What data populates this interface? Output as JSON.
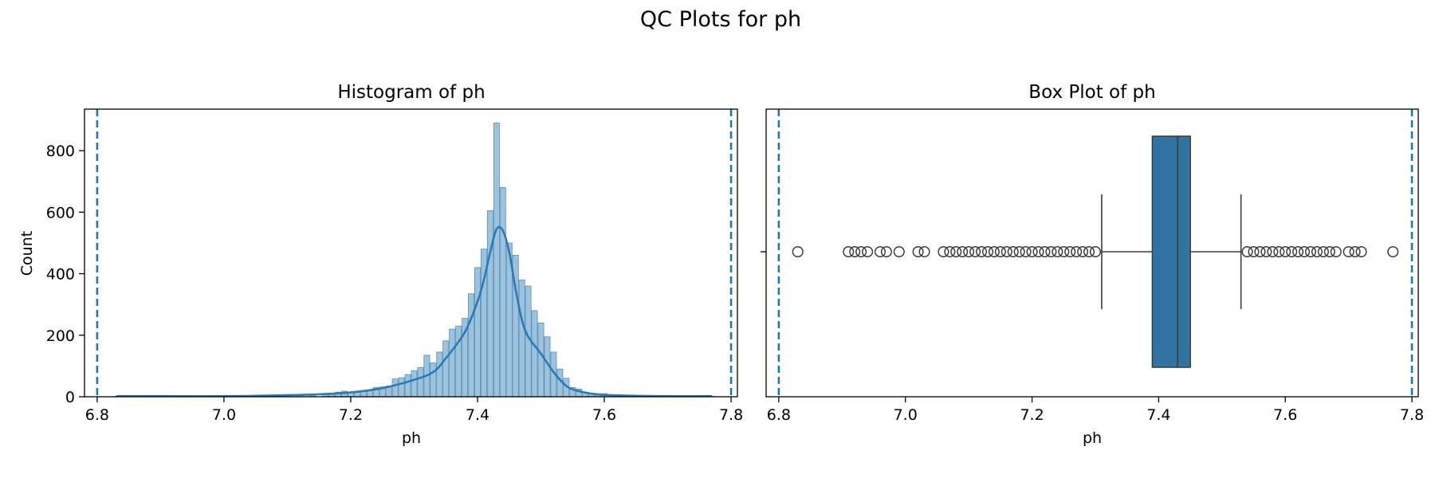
{
  "figure": {
    "title": "QC Plots for ph"
  },
  "colors": {
    "bar_fill": "#9cc3de",
    "bar_edge": "#5e8fb3",
    "kde": "#2a7ab8",
    "ref_line": "#1f77b4",
    "box_fill": "#3274a1",
    "box_edge": "#3d3d3d",
    "axis": "#000000"
  },
  "chart_data": [
    {
      "type": "histogram",
      "title": "Histogram of ph",
      "xlabel": "ph",
      "ylabel": "Count",
      "xlim": [
        6.78,
        7.81
      ],
      "ylim": [
        0,
        935
      ],
      "xticks": [
        "6.8",
        "7.0",
        "7.2",
        "7.4",
        "7.6",
        "7.8"
      ],
      "yticks": [
        "0",
        "200",
        "400",
        "600",
        "800"
      ],
      "reference_lines": [
        6.8,
        7.8
      ],
      "reference_style": "dashed",
      "bins": [
        {
          "x": 6.83,
          "count": 1
        },
        {
          "x": 6.91,
          "count": 1
        },
        {
          "x": 6.96,
          "count": 1
        },
        {
          "x": 7.02,
          "count": 2
        },
        {
          "x": 7.06,
          "count": 3
        },
        {
          "x": 7.08,
          "count": 4
        },
        {
          "x": 7.1,
          "count": 3
        },
        {
          "x": 7.12,
          "count": 5
        },
        {
          "x": 7.14,
          "count": 5
        },
        {
          "x": 7.16,
          "count": 8
        },
        {
          "x": 7.17,
          "count": 8
        },
        {
          "x": 7.18,
          "count": 15
        },
        {
          "x": 7.19,
          "count": 18
        },
        {
          "x": 7.2,
          "count": 12
        },
        {
          "x": 7.21,
          "count": 17
        },
        {
          "x": 7.22,
          "count": 20
        },
        {
          "x": 7.23,
          "count": 22
        },
        {
          "x": 7.24,
          "count": 30
        },
        {
          "x": 7.25,
          "count": 32
        },
        {
          "x": 7.26,
          "count": 35
        },
        {
          "x": 7.27,
          "count": 58
        },
        {
          "x": 7.28,
          "count": 62
        },
        {
          "x": 7.29,
          "count": 72
        },
        {
          "x": 7.3,
          "count": 85
        },
        {
          "x": 7.31,
          "count": 95
        },
        {
          "x": 7.32,
          "count": 135
        },
        {
          "x": 7.33,
          "count": 110
        },
        {
          "x": 7.34,
          "count": 145
        },
        {
          "x": 7.35,
          "count": 182
        },
        {
          "x": 7.36,
          "count": 220
        },
        {
          "x": 7.37,
          "count": 230
        },
        {
          "x": 7.38,
          "count": 255
        },
        {
          "x": 7.39,
          "count": 335
        },
        {
          "x": 7.4,
          "count": 420
        },
        {
          "x": 7.41,
          "count": 480
        },
        {
          "x": 7.42,
          "count": 605
        },
        {
          "x": 7.43,
          "count": 890
        },
        {
          "x": 7.44,
          "count": 680
        },
        {
          "x": 7.45,
          "count": 500
        },
        {
          "x": 7.46,
          "count": 460
        },
        {
          "x": 7.47,
          "count": 380
        },
        {
          "x": 7.48,
          "count": 360
        },
        {
          "x": 7.49,
          "count": 280
        },
        {
          "x": 7.5,
          "count": 240
        },
        {
          "x": 7.51,
          "count": 195
        },
        {
          "x": 7.52,
          "count": 145
        },
        {
          "x": 7.53,
          "count": 90
        },
        {
          "x": 7.54,
          "count": 60
        },
        {
          "x": 7.55,
          "count": 30
        },
        {
          "x": 7.56,
          "count": 25
        },
        {
          "x": 7.57,
          "count": 15
        },
        {
          "x": 7.58,
          "count": 12
        },
        {
          "x": 7.59,
          "count": 10
        },
        {
          "x": 7.6,
          "count": 10
        },
        {
          "x": 7.61,
          "count": 6
        },
        {
          "x": 7.62,
          "count": 4
        },
        {
          "x": 7.64,
          "count": 3
        },
        {
          "x": 7.66,
          "count": 2
        },
        {
          "x": 7.7,
          "count": 1
        },
        {
          "x": 7.77,
          "count": 1
        }
      ],
      "kde": [
        [
          6.83,
          2
        ],
        [
          6.9,
          2
        ],
        [
          7.0,
          2
        ],
        [
          7.05,
          3
        ],
        [
          7.1,
          5
        ],
        [
          7.15,
          8
        ],
        [
          7.2,
          14
        ],
        [
          7.25,
          28
        ],
        [
          7.3,
          55
        ],
        [
          7.33,
          80
        ],
        [
          7.35,
          125
        ],
        [
          7.38,
          210
        ],
        [
          7.4,
          310
        ],
        [
          7.41,
          380
        ],
        [
          7.42,
          470
        ],
        [
          7.43,
          545
        ],
        [
          7.44,
          540
        ],
        [
          7.45,
          470
        ],
        [
          7.46,
          350
        ],
        [
          7.47,
          250
        ],
        [
          7.48,
          195
        ],
        [
          7.5,
          140
        ],
        [
          7.52,
          80
        ],
        [
          7.54,
          35
        ],
        [
          7.56,
          18
        ],
        [
          7.58,
          10
        ],
        [
          7.6,
          6
        ],
        [
          7.65,
          3
        ],
        [
          7.7,
          2
        ],
        [
          7.77,
          2
        ]
      ]
    },
    {
      "type": "box",
      "title": "Box Plot of ph",
      "xlabel": "ph",
      "xlim": [
        6.78,
        7.81
      ],
      "xticks": [
        "6.8",
        "7.0",
        "7.2",
        "7.4",
        "7.6",
        "7.8"
      ],
      "reference_lines": [
        6.8,
        7.8
      ],
      "reference_style": "dashed",
      "stats": {
        "whisker_low": 7.31,
        "q1": 7.39,
        "median": 7.43,
        "q3": 7.45,
        "whisker_high": 7.53
      },
      "outliers": [
        6.83,
        6.91,
        6.92,
        6.93,
        6.94,
        6.96,
        6.97,
        6.99,
        7.02,
        7.03,
        7.06,
        7.07,
        7.08,
        7.09,
        7.1,
        7.11,
        7.12,
        7.13,
        7.14,
        7.15,
        7.16,
        7.17,
        7.18,
        7.19,
        7.2,
        7.21,
        7.22,
        7.23,
        7.24,
        7.25,
        7.26,
        7.27,
        7.28,
        7.29,
        7.3,
        7.54,
        7.55,
        7.56,
        7.57,
        7.58,
        7.59,
        7.6,
        7.61,
        7.62,
        7.63,
        7.64,
        7.65,
        7.66,
        7.67,
        7.68,
        7.7,
        7.71,
        7.72,
        7.77
      ]
    }
  ]
}
